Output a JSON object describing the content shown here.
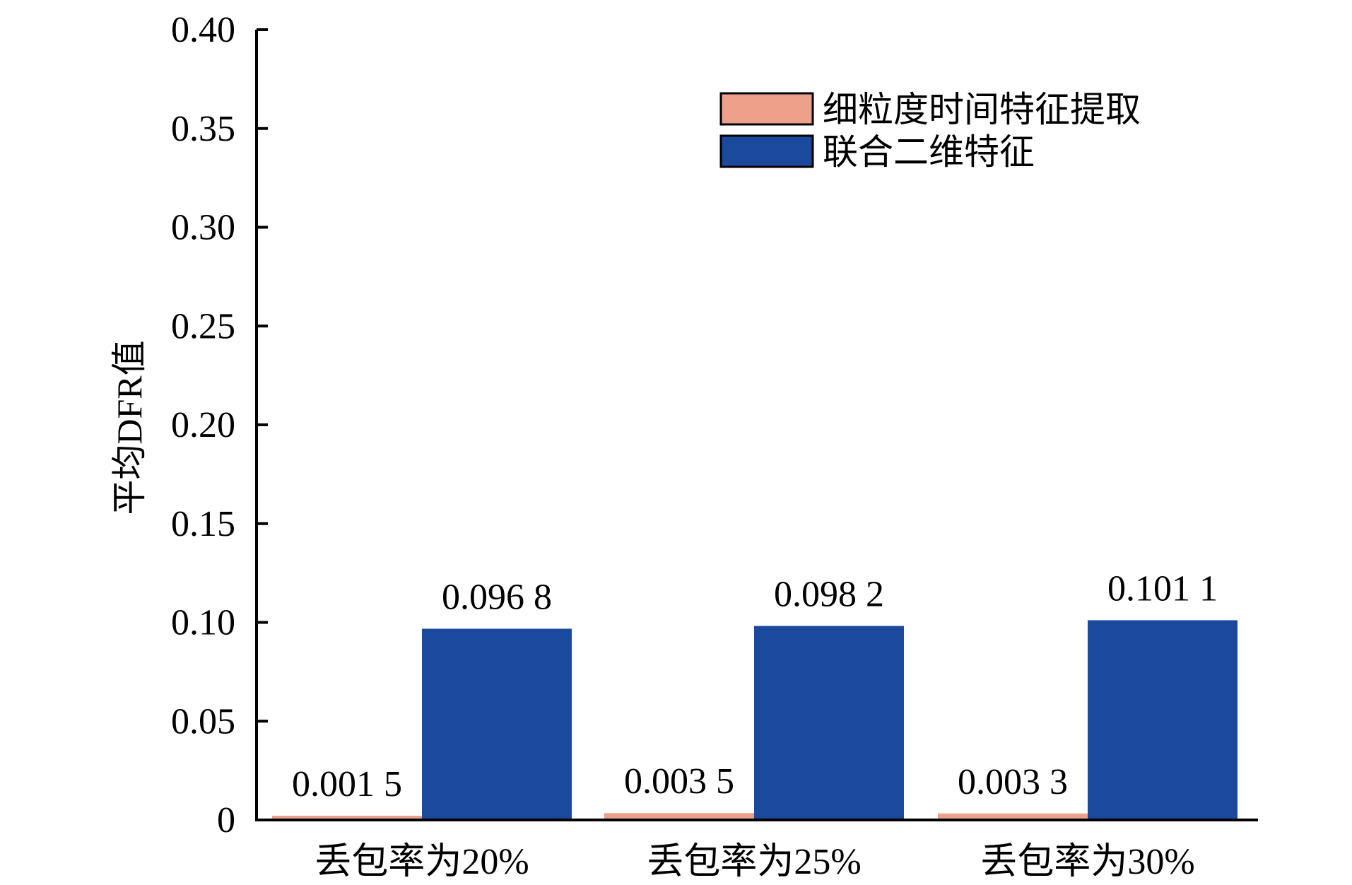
{
  "chart_data": {
    "type": "bar",
    "ylabel": "平均DFR值",
    "xlabel": "",
    "ylim": [
      0,
      0.4
    ],
    "yticks": [
      {
        "value": 0,
        "label": "0"
      },
      {
        "value": 0.05,
        "label": "0.05"
      },
      {
        "value": 0.1,
        "label": "0.10"
      },
      {
        "value": 0.15,
        "label": "0.15"
      },
      {
        "value": 0.2,
        "label": "0.20"
      },
      {
        "value": 0.25,
        "label": "0.25"
      },
      {
        "value": 0.3,
        "label": "0.30"
      },
      {
        "value": 0.35,
        "label": "0.35"
      },
      {
        "value": 0.4,
        "label": "0.40"
      }
    ],
    "categories": [
      "丢包率为20%",
      "丢包率为25%",
      "丢包率为30%"
    ],
    "series": [
      {
        "name": "细粒度时间特征提取",
        "color": "#EDA18B",
        "values": [
          0.0015,
          0.0035,
          0.0033
        ],
        "labels": [
          "0.001 5",
          "0.003 5",
          "0.003 3"
        ]
      },
      {
        "name": "联合二维特征",
        "color": "#1B4A9C",
        "values": [
          0.0968,
          0.0982,
          0.1011
        ],
        "labels": [
          "0.096 8",
          "0.098 2",
          "0.101 1"
        ]
      }
    ],
    "legend_position": "top-right",
    "grid": false
  }
}
